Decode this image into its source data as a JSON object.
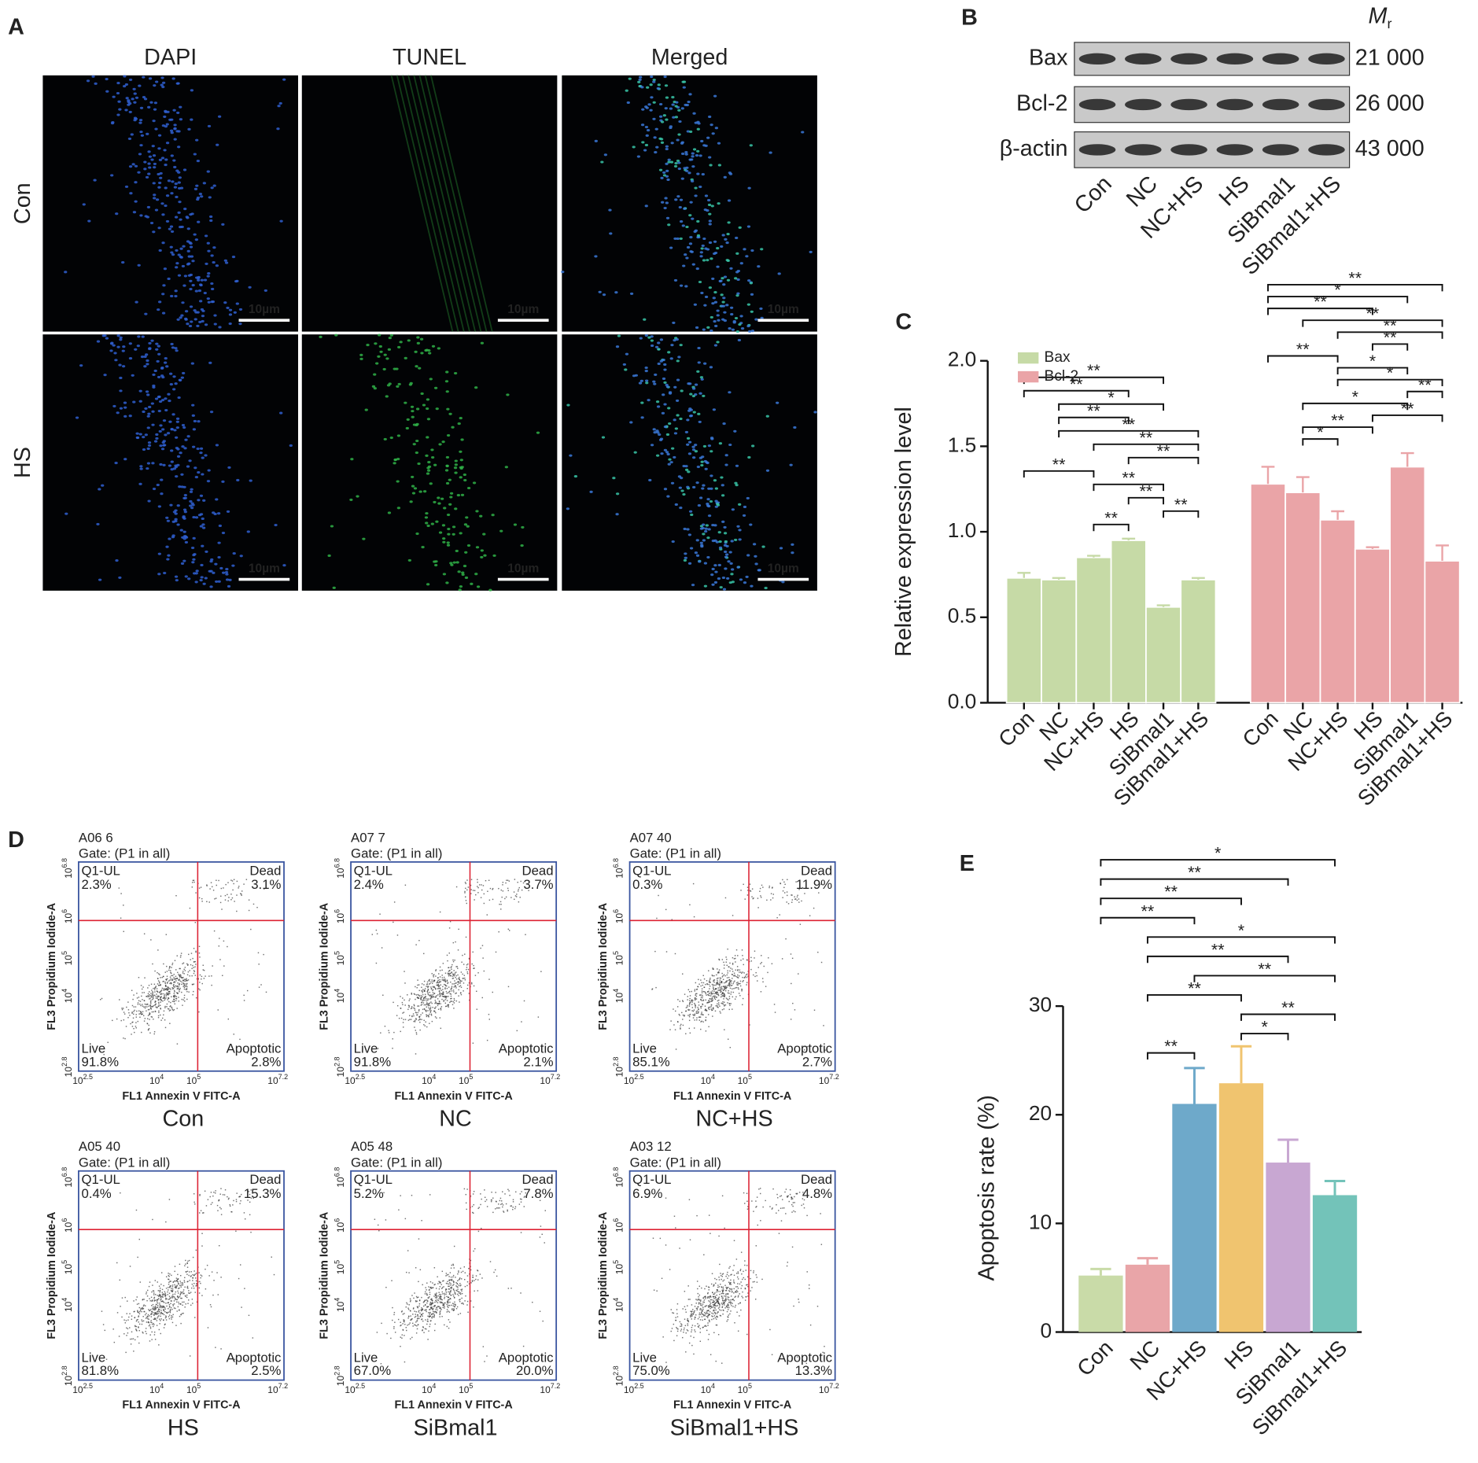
{
  "panel_labels": [
    "A",
    "B",
    "C",
    "D",
    "E"
  ],
  "panel_a": {
    "columns": [
      "DAPI",
      "TUNEL",
      "Merged"
    ],
    "rows": [
      "Con",
      "HS"
    ],
    "scale_bar": "10µm"
  },
  "panel_b": {
    "mr_symbol": "M",
    "mr_subscript": "r",
    "bands": [
      {
        "name": "Bax",
        "mr": "21 000"
      },
      {
        "name": "Bcl-2",
        "mr": "26 000"
      },
      {
        "name": "β-actin",
        "mr": "43 000"
      }
    ],
    "lanes": [
      "Con",
      "NC",
      "NC+HS",
      "HS",
      "SiBmal1",
      "SiBmal1+HS"
    ]
  },
  "chart_data": [
    {
      "type": "bar",
      "ylabel": "Relative expression level",
      "categories": [
        "Con",
        "NC",
        "NC+HS",
        "HS",
        "SiBmal1",
        "SiBmal1+HS"
      ],
      "series": [
        {
          "name": "Bax",
          "color": "#c6daa6",
          "values": [
            0.73,
            0.72,
            0.85,
            0.95,
            0.56,
            0.72
          ],
          "errors": [
            0.03,
            0.01,
            0.01,
            0.01,
            0.01,
            0.01
          ],
          "comparisons": [
            {
              "pair": [
                2,
                3
              ],
              "label": "**"
            },
            {
              "pair": [
                4,
                5
              ],
              "label": "**"
            },
            {
              "pair": [
                3,
                4
              ],
              "label": "**"
            },
            {
              "pair": [
                2,
                4
              ],
              "label": "**"
            },
            {
              "pair": [
                0,
                2
              ],
              "label": "**"
            },
            {
              "pair": [
                3,
                5
              ],
              "label": "**"
            },
            {
              "pair": [
                2,
                5
              ],
              "label": "**"
            },
            {
              "pair": [
                1,
                5
              ],
              "label": "**"
            },
            {
              "pair": [
                1,
                3
              ],
              "label": "**"
            },
            {
              "pair": [
                1,
                4
              ],
              "label": "*"
            },
            {
              "pair": [
                0,
                3
              ],
              "label": "**"
            },
            {
              "pair": [
                0,
                4
              ],
              "label": "**"
            }
          ]
        },
        {
          "name": "Bcl-2",
          "color": "#eaa4a7",
          "values": [
            1.28,
            1.23,
            1.07,
            0.9,
            1.38,
            0.83
          ],
          "errors": [
            0.1,
            0.09,
            0.05,
            0.01,
            0.08,
            0.09
          ],
          "comparisons": [
            {
              "pair": [
                1,
                2
              ],
              "label": "*"
            },
            {
              "pair": [
                1,
                3
              ],
              "label": "**"
            },
            {
              "pair": [
                3,
                5
              ],
              "label": "**"
            },
            {
              "pair": [
                1,
                4
              ],
              "label": "*"
            },
            {
              "pair": [
                4,
                5
              ],
              "label": "**"
            },
            {
              "pair": [
                2,
                5
              ],
              "label": "*"
            },
            {
              "pair": [
                2,
                4
              ],
              "label": "*"
            },
            {
              "pair": [
                0,
                2
              ],
              "label": "**"
            },
            {
              "pair": [
                3,
                4
              ],
              "label": "**"
            },
            {
              "pair": [
                2,
                5
              ],
              "label": "**"
            },
            {
              "pair": [
                1,
                5
              ],
              "label": "**"
            },
            {
              "pair": [
                0,
                3
              ],
              "label": "**"
            },
            {
              "pair": [
                0,
                4
              ],
              "label": "*"
            },
            {
              "pair": [
                0,
                5
              ],
              "label": "**"
            }
          ]
        }
      ],
      "ylim": [
        0,
        2
      ],
      "yticks": [
        {
          "value": 0,
          "label": "0.0"
        },
        {
          "value": 0.5,
          "label": "0.5"
        },
        {
          "value": 1,
          "label": "1.0"
        },
        {
          "value": 1.5,
          "label": "1.5"
        },
        {
          "value": 2,
          "label": "2.0"
        }
      ],
      "legend": "upper left"
    },
    {
      "type": "bar",
      "ylabel": "Apoptosis rate (%)",
      "categories": [
        "Con",
        "NC",
        "NC+HS",
        "HS",
        "SiBmal1",
        "SiBmal1+HS"
      ],
      "values": [
        5.2,
        6.2,
        21.0,
        22.9,
        15.6,
        12.6
      ],
      "errors": [
        0.6,
        0.6,
        3.3,
        3.4,
        2.1,
        1.3
      ],
      "colors": [
        "#c9dba8",
        "#e9a5a8",
        "#6ea9ca",
        "#f0c46f",
        "#c8a7d2",
        "#73c3b9"
      ],
      "ylim": [
        0,
        30
      ],
      "yticks": [
        0,
        10,
        20,
        30
      ],
      "comparisons": [
        {
          "pair": [
            1,
            2
          ],
          "label": "**"
        },
        {
          "pair": [
            3,
            4
          ],
          "label": "*"
        },
        {
          "pair": [
            3,
            5
          ],
          "label": "**"
        },
        {
          "pair": [
            1,
            3
          ],
          "label": "**"
        },
        {
          "pair": [
            2,
            5
          ],
          "label": "**"
        },
        {
          "pair": [
            1,
            4
          ],
          "label": "**"
        },
        {
          "pair": [
            1,
            5
          ],
          "label": "*"
        },
        {
          "pair": [
            0,
            2
          ],
          "label": "**"
        },
        {
          "pair": [
            0,
            3
          ],
          "label": "**"
        },
        {
          "pair": [
            0,
            4
          ],
          "label": "**"
        },
        {
          "pair": [
            0,
            5
          ],
          "label": "*"
        }
      ]
    }
  ],
  "panel_d": {
    "xlabel": "FL1 Annexin V FITC-A",
    "ylabel": "FL3 Propidium Iodide-A",
    "x_ticks": [
      {
        "base": "10",
        "exp": "2.5"
      },
      {
        "base": "10",
        "exp": "4"
      },
      {
        "base": "10",
        "exp": "5"
      },
      {
        "base": "10",
        "exp": "7.2"
      }
    ],
    "y_ticks": [
      {
        "base": "10",
        "exp": "2.8"
      },
      {
        "base": "10",
        "exp": "4"
      },
      {
        "base": "10",
        "exp": "5"
      },
      {
        "base": "10",
        "exp": "6"
      },
      {
        "base": "10",
        "exp": "6.8"
      }
    ],
    "plots": [
      {
        "id": "A06 6",
        "gate": "Gate: (P1 in all)",
        "ul": "Q1-UL",
        "ul_pct": "2.3%",
        "ur": "Dead",
        "ur_pct": "3.1%",
        "ll": "Live",
        "ll_pct": "91.8%",
        "lr": "Apoptotic",
        "lr_pct": "2.8%",
        "caption": "Con"
      },
      {
        "id": "A07 7",
        "gate": "Gate: (P1 in all)",
        "ul": "Q1-UL",
        "ul_pct": "2.4%",
        "ur": "Dead",
        "ur_pct": "3.7%",
        "ll": "Live",
        "ll_pct": "91.8%",
        "lr": "Apoptotic",
        "lr_pct": "2.1%",
        "caption": "NC"
      },
      {
        "id": "A07 40",
        "gate": "Gate: (P1 in all)",
        "ul": "Q1-UL",
        "ul_pct": "0.3%",
        "ur": "Dead",
        "ur_pct": "11.9%",
        "ll": "Live",
        "ll_pct": "85.1%",
        "lr": "Apoptotic",
        "lr_pct": "2.7%",
        "caption": "NC+HS"
      },
      {
        "id": "A05 40",
        "gate": "Gate: (P1 in all)",
        "ul": "Q1-UL",
        "ul_pct": "0.4%",
        "ur": "Dead",
        "ur_pct": "15.3%",
        "ll": "Live",
        "ll_pct": "81.8%",
        "lr": "Apoptotic",
        "lr_pct": "2.5%",
        "caption": "HS"
      },
      {
        "id": "A05 48",
        "gate": "Gate: (P1 in all)",
        "ul": "Q1-UL",
        "ul_pct": "5.2%",
        "ur": "Dead",
        "ur_pct": "7.8%",
        "ll": "Live",
        "ll_pct": "67.0%",
        "lr": "Apoptotic",
        "lr_pct": "20.0%",
        "caption": "SiBmal1"
      },
      {
        "id": "A03 12",
        "gate": "Gate: (P1 in all)",
        "ul": "Q1-UL",
        "ul_pct": "6.9%",
        "ur": "Dead",
        "ur_pct": "4.8%",
        "ll": "Live",
        "ll_pct": "75.0%",
        "lr": "Apoptotic",
        "lr_pct": "13.3%",
        "caption": "SiBmal1+HS"
      }
    ]
  }
}
